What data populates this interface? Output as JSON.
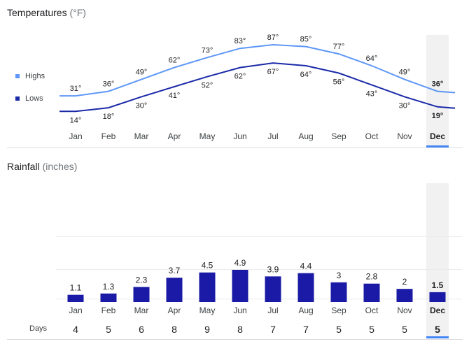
{
  "colors": {
    "highs": "#5e97f6",
    "lows": "#1a2aa8",
    "bars": "#1a1aa6",
    "selected_bg": "#f1f1f1",
    "selected_underline": "#4285f4"
  },
  "temperatures": {
    "title": "Temperatures",
    "unit": "(°F)",
    "legend_highs": "Highs",
    "legend_lows": "Lows"
  },
  "rainfall": {
    "title": "Rainfall",
    "unit": "(inches)",
    "days_label": "Days"
  },
  "selected_month": "Dec",
  "chart_data": [
    {
      "type": "line",
      "title": "Temperatures (°F)",
      "categories": [
        "Jan",
        "Feb",
        "Mar",
        "Apr",
        "May",
        "Jun",
        "Jul",
        "Aug",
        "Sep",
        "Oct",
        "Nov",
        "Dec"
      ],
      "series": [
        {
          "name": "Highs",
          "values": [
            31,
            36,
            49,
            62,
            73,
            83,
            87,
            85,
            77,
            64,
            49,
            36
          ],
          "labels": [
            "31°",
            "36°",
            "49°",
            "62°",
            "73°",
            "83°",
            "87°",
            "85°",
            "77°",
            "64°",
            "49°",
            "36°"
          ]
        },
        {
          "name": "Lows",
          "values": [
            14,
            18,
            30,
            41,
            52,
            62,
            67,
            64,
            56,
            43,
            30,
            19
          ],
          "labels": [
            "14°",
            "18°",
            "30°",
            "41°",
            "52°",
            "62°",
            "67°",
            "64°",
            "56°",
            "43°",
            "30°",
            "19°"
          ]
        }
      ],
      "legend": "left",
      "highlight": "Dec"
    },
    {
      "type": "bar",
      "title": "Rainfall (inches)",
      "categories": [
        "Jan",
        "Feb",
        "Mar",
        "Apr",
        "May",
        "Jun",
        "Jul",
        "Aug",
        "Sep",
        "Oct",
        "Nov",
        "Dec"
      ],
      "values": [
        1.1,
        1.3,
        2.3,
        3.7,
        4.5,
        4.9,
        3.9,
        4.4,
        3,
        2.8,
        2,
        1.5
      ],
      "value_labels": [
        "1.1",
        "1.3",
        "2.3",
        "3.7",
        "4.5",
        "4.9",
        "3.9",
        "4.4",
        "3",
        "2.8",
        "2",
        "1.5"
      ],
      "days": [
        "4",
        "5",
        "6",
        "8",
        "9",
        "8",
        "7",
        "7",
        "5",
        "5",
        "5",
        "5"
      ],
      "ylim": [
        0,
        10
      ],
      "grid": true,
      "highlight": "Dec"
    }
  ]
}
